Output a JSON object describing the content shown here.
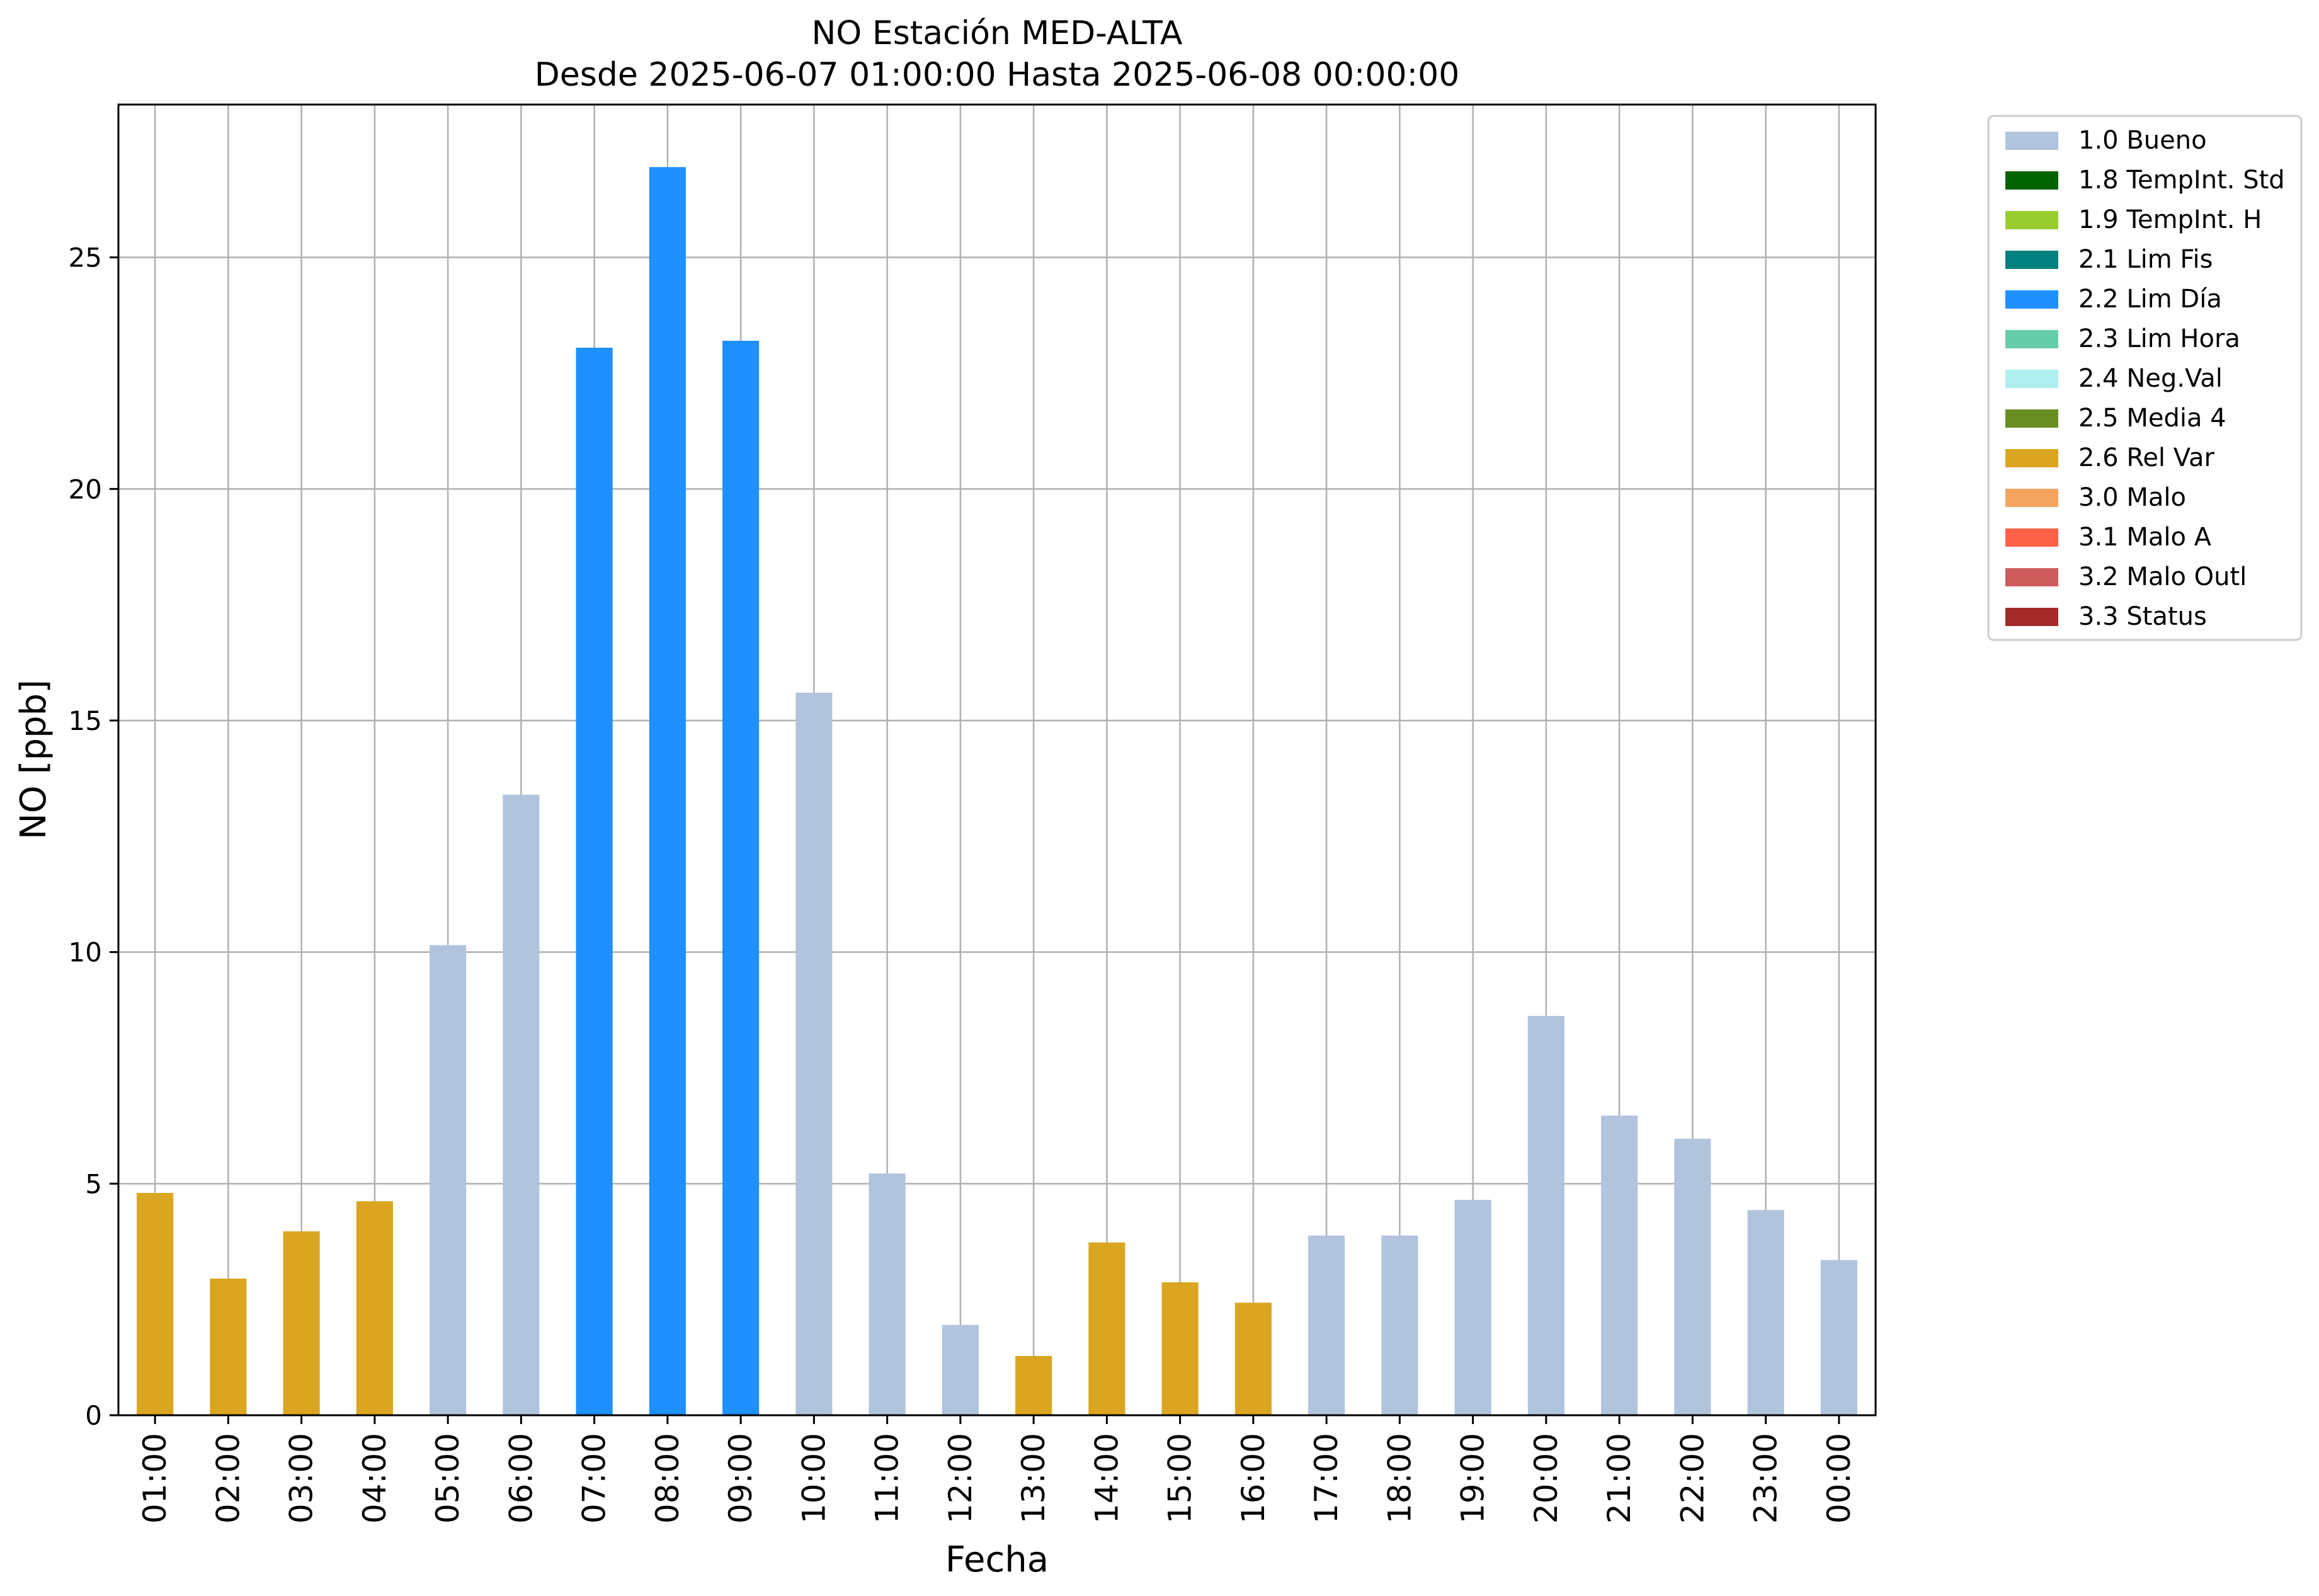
{
  "chart_data": {
    "type": "bar",
    "title": "NO Estación MED-ALTA",
    "subtitle": "Desde 2025-06-07 01:00:00 Hasta 2025-06-08 00:00:00",
    "xlabel": "Fecha",
    "ylabel": "NO [ppb]",
    "ylim": [
      0,
      28.3
    ],
    "yticks": [
      0,
      5,
      10,
      15,
      20,
      25
    ],
    "grid": true,
    "legend_position": "outside-top-right",
    "categories": [
      "01:00",
      "02:00",
      "03:00",
      "04:00",
      "05:00",
      "06:00",
      "07:00",
      "08:00",
      "09:00",
      "10:00",
      "11:00",
      "12:00",
      "13:00",
      "14:00",
      "15:00",
      "16:00",
      "17:00",
      "18:00",
      "19:00",
      "20:00",
      "21:00",
      "22:00",
      "23:00",
      "00:00"
    ],
    "values": [
      4.8,
      2.95,
      3.97,
      4.62,
      10.15,
      13.4,
      23.05,
      26.95,
      23.2,
      15.6,
      5.22,
      1.95,
      1.28,
      3.73,
      2.87,
      2.43,
      3.88,
      3.88,
      4.65,
      8.62,
      6.47,
      5.97,
      4.43,
      3.35
    ],
    "flags": [
      "2.6 Rel Var",
      "2.6 Rel Var",
      "2.6 Rel Var",
      "2.6 Rel Var",
      "1.0 Bueno",
      "1.0 Bueno",
      "2.2 Lim Día",
      "2.2 Lim Día",
      "2.2 Lim Día",
      "1.0 Bueno",
      "1.0 Bueno",
      "1.0 Bueno",
      "2.6 Rel Var",
      "2.6 Rel Var",
      "2.6 Rel Var",
      "2.6 Rel Var",
      "1.0 Bueno",
      "1.0 Bueno",
      "1.0 Bueno",
      "1.0 Bueno",
      "1.0 Bueno",
      "1.0 Bueno",
      "1.0 Bueno",
      "1.0 Bueno"
    ],
    "legend": [
      {
        "label": "1.0 Bueno",
        "color": "#b0c4de"
      },
      {
        "label": "1.8 TempInt. Std",
        "color": "#006400"
      },
      {
        "label": "1.9 TempInt. H",
        "color": "#9acd32"
      },
      {
        "label": "2.1 Lim Fis",
        "color": "#008080"
      },
      {
        "label": "2.2 Lim Día",
        "color": "#1e90ff"
      },
      {
        "label": "2.3 Lim Hora",
        "color": "#66cdaa"
      },
      {
        "label": "2.4 Neg.Val",
        "color": "#afeeee"
      },
      {
        "label": "2.5 Media 4",
        "color": "#6b8e23"
      },
      {
        "label": "2.6 Rel Var",
        "color": "#daa520"
      },
      {
        "label": "3.0 Malo",
        "color": "#f4a460"
      },
      {
        "label": "3.1 Malo A",
        "color": "#ff6347"
      },
      {
        "label": "3.2 Malo Outl",
        "color": "#cd5c5c"
      },
      {
        "label": "3.3 Status",
        "color": "#a52a2a"
      }
    ]
  }
}
